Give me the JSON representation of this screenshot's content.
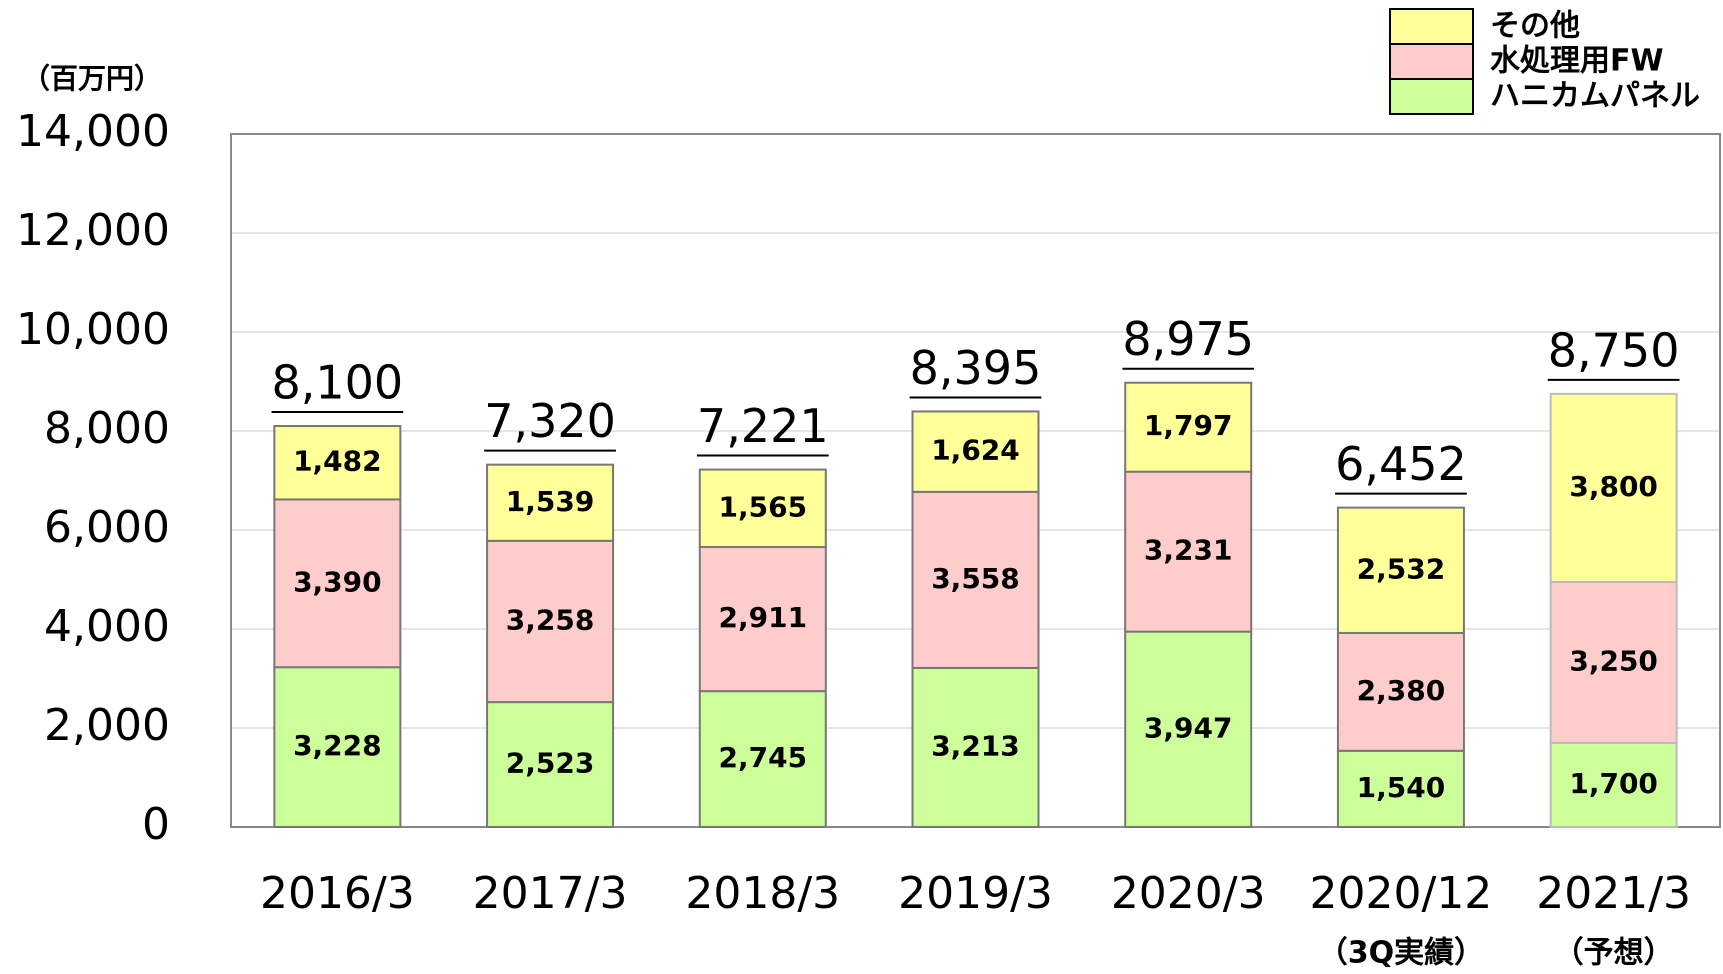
{
  "chart_data": {
    "type": "stacked_bar",
    "y_unit": "（百万円）",
    "categories": [
      "2016/3",
      "2017/3",
      "2018/3",
      "2019/3",
      "2020/3",
      "2020/12",
      "2021/3"
    ],
    "category_notes": [
      null,
      null,
      null,
      null,
      null,
      "（3Q実績）",
      "（予想）"
    ],
    "series": [
      {
        "name": "ハニカムパネル",
        "color": "#ccff99",
        "values": [
          3228,
          2523,
          2745,
          3213,
          3947,
          1540,
          1700
        ],
        "value_labels": [
          "3,228",
          "2,523",
          "2,745",
          "3,213",
          "3,947",
          "1,540",
          "1,700"
        ]
      },
      {
        "name": "水処理用FW",
        "color": "#ffcccc",
        "values": [
          3390,
          3258,
          2911,
          3558,
          3231,
          2380,
          3250
        ],
        "value_labels": [
          "3,390",
          "3,258",
          "2,911",
          "3,558",
          "3,231",
          "2,380",
          "3,250"
        ]
      },
      {
        "name": "その他",
        "color": "#ffff99",
        "values": [
          1482,
          1539,
          1565,
          1624,
          1797,
          2532,
          3800
        ],
        "value_labels": [
          "1,482",
          "1,539",
          "1,565",
          "1,624",
          "1,797",
          "2,532",
          "3,800"
        ]
      }
    ],
    "totals": [
      8100,
      7320,
      7221,
      8395,
      8975,
      6452,
      8750
    ],
    "totals_labels": [
      "8,100",
      "7,320",
      "7,221",
      "8,395",
      "8,975",
      "6,452",
      "8,750"
    ],
    "ylim": [
      0,
      14000
    ],
    "yticks": [
      0,
      {
        "value": 2000,
        "label": "2,000"
      },
      {
        "value": 4000,
        "label": "4,000"
      },
      {
        "value": 6000,
        "label": "6,000"
      },
      {
        "value": 8000,
        "label": "8,000"
      },
      {
        "value": 10000,
        "label": "10,000"
      },
      {
        "value": 12000,
        "label": "12,000"
      },
      {
        "value": 14000,
        "label": "14,000"
      }
    ],
    "grid": true,
    "legend": "top-right"
  }
}
